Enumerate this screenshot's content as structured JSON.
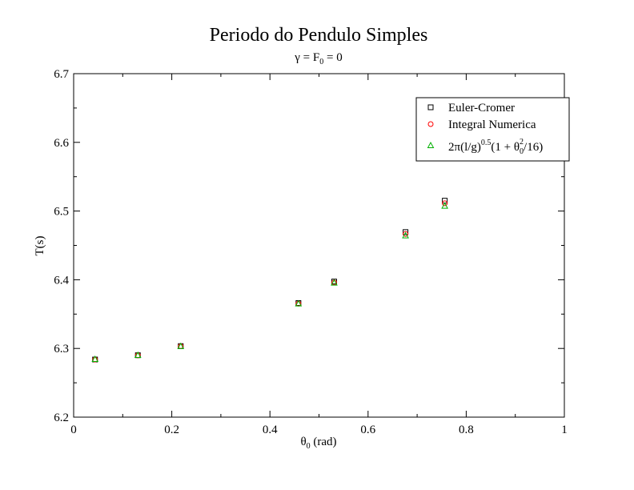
{
  "chart_data": {
    "type": "scatter",
    "title": "Periodo do Pendulo Simples",
    "subtitle": {
      "gamma": "γ",
      "eq1": " = F",
      "sub0": "0",
      "eq2": " = 0"
    },
    "xlabel": {
      "theta": "θ",
      "sub0": "0",
      "unit": " (rad)"
    },
    "ylabel": "T(s)",
    "xlim": [
      0,
      1
    ],
    "ylim": [
      6.2,
      6.7
    ],
    "x_ticks": [
      "0",
      "0.2",
      "0.4",
      "0.6",
      "0.8",
      "1"
    ],
    "y_ticks": [
      "6.2",
      "6.3",
      "6.4",
      "6.5",
      "6.6",
      "6.7"
    ],
    "x_tick_values": [
      0,
      0.2,
      0.4,
      0.6,
      0.8,
      1.0
    ],
    "y_tick_values": [
      6.2,
      6.3,
      6.4,
      6.5,
      6.6,
      6.7
    ],
    "legend_placement": "top-right",
    "grid": false,
    "series": [
      {
        "name": "Euler-Cromer",
        "marker": "square",
        "color": "#000000",
        "x": [
          0.0436,
          0.1309,
          0.2182,
          0.4581,
          0.5309,
          0.6763,
          0.7563
        ],
        "y": [
          6.2839,
          6.2901,
          6.3034,
          6.3661,
          6.3974,
          6.4694,
          6.5151
        ]
      },
      {
        "name": "Integral Numerica",
        "marker": "circle",
        "color": "#ff0000",
        "x": [
          0.0436,
          0.1309,
          0.2182,
          0.4581,
          0.5309,
          0.6763,
          0.7563
        ],
        "y": [
          6.2837,
          6.2899,
          6.3032,
          6.3652,
          6.3959,
          6.4667,
          6.5113
        ]
      },
      {
        "name": "2π(l/g)^0.5(1 + θ0^2/16)",
        "marker": "triangle",
        "color": "#00b000",
        "x": [
          0.0436,
          0.1309,
          0.2182,
          0.4581,
          0.5309,
          0.6763,
          0.7563
        ],
        "y": [
          6.2839,
          6.2898,
          6.3027,
          6.3647,
          6.3951,
          6.4639,
          6.507
        ]
      }
    ],
    "legend_formula": {
      "p1": "2π(l/g)",
      "sup1": "0.5",
      "p2": "(1 + θ",
      "sub": "0",
      "sup2": "2",
      "p3": "/16)"
    }
  }
}
